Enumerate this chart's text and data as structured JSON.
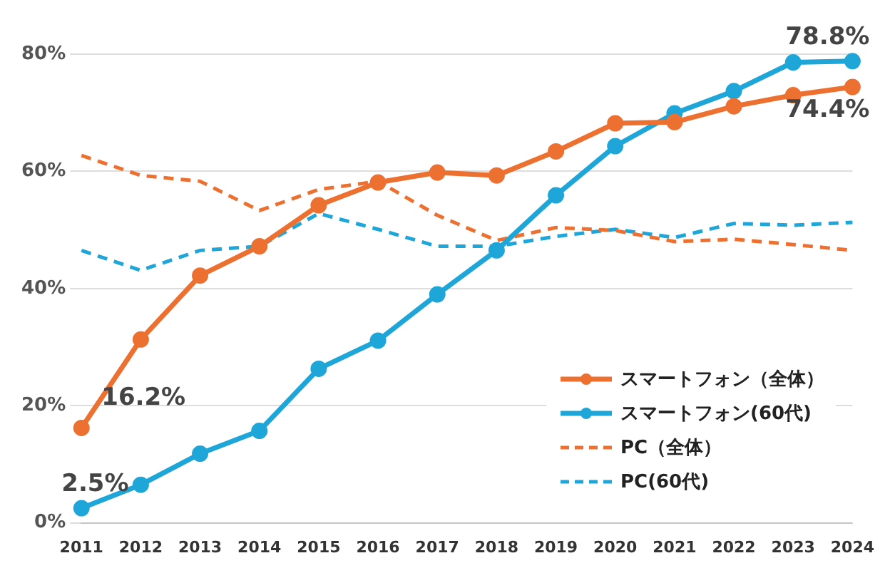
{
  "chart_data": {
    "type": "line",
    "categories": [
      "2011",
      "2012",
      "2013",
      "2014",
      "2015",
      "2016",
      "2017",
      "2018",
      "2019",
      "2020",
      "2021",
      "2022",
      "2023",
      "2024"
    ],
    "series": [
      {
        "name": "スマートフォン（全体）",
        "color": "#ec7030",
        "marker": "circle",
        "line_style": "solid",
        "values": [
          16.2,
          31.3,
          42.2,
          47.2,
          54.2,
          58.1,
          59.8,
          59.3,
          63.4,
          68.2,
          68.4,
          71.1,
          73.0,
          74.4
        ],
        "value_labels": [
          "16.2%",
          null,
          null,
          null,
          null,
          null,
          null,
          null,
          null,
          null,
          null,
          null,
          null,
          "74.4%"
        ]
      },
      {
        "name": "スマートフォン(60代)",
        "color": "#1ea6d8",
        "marker": "circle",
        "line_style": "solid",
        "values": [
          2.5,
          6.5,
          11.8,
          15.7,
          26.3,
          31.1,
          39.0,
          46.5,
          55.9,
          64.3,
          69.9,
          73.7,
          78.6,
          78.8
        ],
        "value_labels": [
          "2.5%",
          null,
          null,
          null,
          null,
          null,
          null,
          null,
          null,
          null,
          null,
          null,
          null,
          "78.8%"
        ]
      },
      {
        "name": "PC（全体）",
        "color": "#ec7030",
        "marker": "none",
        "line_style": "dashed",
        "values": [
          62.7,
          59.3,
          58.3,
          53.3,
          56.9,
          58.3,
          52.5,
          48.2,
          50.4,
          49.9,
          48.0,
          48.4,
          47.5,
          46.5
        ]
      },
      {
        "name": "PC(60代)",
        "color": "#1ea6d8",
        "marker": "none",
        "line_style": "dashed",
        "values": [
          46.5,
          43.1,
          46.5,
          47.2,
          52.8,
          50.1,
          47.2,
          47.2,
          48.9,
          50.1,
          48.7,
          51.1,
          50.8,
          51.3
        ]
      }
    ],
    "ylim": [
      0,
      80
    ],
    "yticks": [
      {
        "value": 0,
        "label": "0%"
      },
      {
        "value": 20,
        "label": "20%"
      },
      {
        "value": 40,
        "label": "40%"
      },
      {
        "value": 60,
        "label": "60%"
      },
      {
        "value": 80,
        "label": "80%"
      }
    ],
    "grid": "y",
    "legend": "bottom right"
  }
}
